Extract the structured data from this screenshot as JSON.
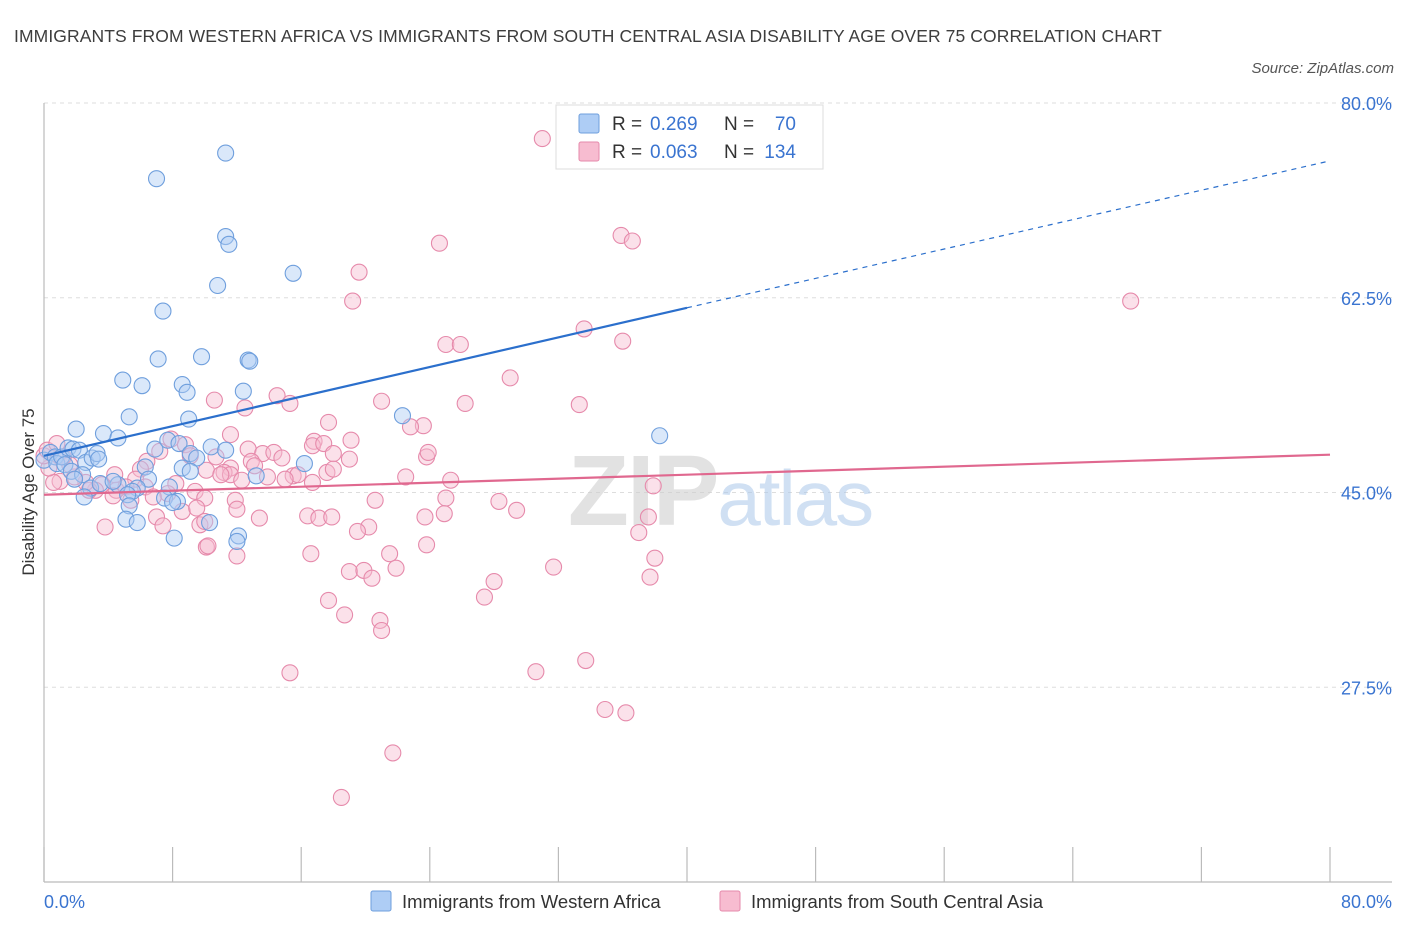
{
  "title": "IMMIGRANTS FROM WESTERN AFRICA VS IMMIGRANTS FROM SOUTH CENTRAL ASIA DISABILITY AGE OVER 75 CORRELATION CHART",
  "source": "Source: ZipAtlas.com",
  "watermark": "ZIPatlas",
  "colors": {
    "blue_fill": "#aecdf5",
    "blue_stroke": "#6f9fdd",
    "blue_line": "#2b6fcc",
    "pink_fill": "#f7bcd0",
    "pink_stroke": "#e68aab",
    "pink_line": "#e0688f",
    "value_text": "#3a74d0",
    "grid": "#dddddd"
  },
  "legend_top": {
    "rows": [
      {
        "r_label": "R =",
        "r_value": "0.269",
        "n_label": "N =",
        "n_value": "70"
      },
      {
        "r_label": "R =",
        "r_value": "0.063",
        "n_label": "N =",
        "n_value": "134"
      }
    ]
  },
  "legend_bottom": [
    "Immigrants from Western Africa",
    "Immigrants from South Central Asia"
  ],
  "chart_data": {
    "type": "scatter",
    "title": "IMMIGRANTS FROM WESTERN AFRICA VS IMMIGRANTS FROM SOUTH CENTRAL ASIA DISABILITY AGE OVER 75 CORRELATION CHART",
    "xlabel": "",
    "ylabel": "Disability Age Over 75",
    "xlim": [
      0,
      80
    ],
    "ylim": [
      10,
      80
    ],
    "x_tick_labels": [
      "0.0%",
      "80.0%"
    ],
    "y_ticks": [
      27.5,
      45.0,
      62.5,
      80.0
    ],
    "y_tick_labels": [
      "27.5%",
      "45.0%",
      "62.5%",
      "80.0%"
    ],
    "grid": true,
    "legend_position": "top-center",
    "series": [
      {
        "name": "Immigrants from Western Africa",
        "R": 0.269,
        "N": 70,
        "trend": {
          "x": [
            0,
            40
          ],
          "y": [
            48.3,
            61.6
          ],
          "dashed_to": [
            80,
            74.8
          ]
        },
        "points": [
          [
            7.0,
            73.2
          ],
          [
            11.3,
            75.5
          ],
          [
            11.3,
            68.0
          ],
          [
            11.5,
            67.3
          ],
          [
            10.8,
            63.6
          ],
          [
            7.4,
            61.3
          ],
          [
            15.5,
            64.7
          ],
          [
            9.8,
            57.2
          ],
          [
            7.1,
            57.0
          ],
          [
            12.7,
            56.9
          ],
          [
            12.8,
            56.8
          ],
          [
            4.9,
            55.1
          ],
          [
            6.1,
            54.6
          ],
          [
            8.6,
            54.7
          ],
          [
            8.9,
            54.0
          ],
          [
            12.4,
            54.1
          ],
          [
            5.3,
            51.8
          ],
          [
            9.0,
            51.6
          ],
          [
            22.3,
            51.9
          ],
          [
            38.3,
            50.1
          ],
          [
            3.7,
            50.3
          ],
          [
            2.0,
            50.7
          ],
          [
            4.6,
            49.9
          ],
          [
            0.0,
            47.9
          ],
          [
            0.4,
            48.6
          ],
          [
            0.7,
            48.2
          ],
          [
            0.8,
            47.6
          ],
          [
            1.1,
            48.2
          ],
          [
            1.5,
            49.0
          ],
          [
            1.8,
            48.9
          ],
          [
            2.2,
            48.8
          ],
          [
            2.6,
            47.7
          ],
          [
            3.0,
            48.1
          ],
          [
            3.3,
            48.5
          ],
          [
            3.4,
            48.0
          ],
          [
            1.3,
            47.5
          ],
          [
            1.7,
            46.9
          ],
          [
            2.4,
            46.6
          ],
          [
            1.9,
            46.2
          ],
          [
            2.9,
            45.4
          ],
          [
            3.5,
            45.8
          ],
          [
            4.6,
            45.7
          ],
          [
            4.3,
            46.0
          ],
          [
            6.3,
            47.3
          ],
          [
            6.5,
            46.2
          ],
          [
            6.9,
            48.9
          ],
          [
            7.7,
            49.7
          ],
          [
            8.4,
            49.4
          ],
          [
            9.1,
            48.5
          ],
          [
            9.5,
            48.1
          ],
          [
            10.4,
            49.1
          ],
          [
            8.6,
            47.2
          ],
          [
            7.8,
            45.5
          ],
          [
            9.1,
            46.9
          ],
          [
            11.3,
            48.8
          ],
          [
            16.2,
            47.6
          ],
          [
            13.2,
            46.5
          ],
          [
            5.8,
            45.4
          ],
          [
            5.5,
            45.1
          ],
          [
            2.5,
            44.6
          ],
          [
            5.2,
            44.8
          ],
          [
            7.5,
            44.5
          ],
          [
            8.3,
            44.2
          ],
          [
            5.3,
            43.8
          ],
          [
            8.0,
            44.1
          ],
          [
            5.1,
            42.6
          ],
          [
            5.8,
            42.3
          ],
          [
            10.3,
            42.3
          ],
          [
            12.1,
            41.1
          ],
          [
            8.1,
            40.9
          ],
          [
            12.0,
            40.6
          ]
        ]
      },
      {
        "name": "Immigrants from South Central Asia",
        "R": 0.063,
        "N": 134,
        "trend": {
          "x": [
            0,
            80
          ],
          "y": [
            44.8,
            48.4
          ]
        },
        "points": [
          [
            31.0,
            76.8
          ],
          [
            35.9,
            68.1
          ],
          [
            24.6,
            67.4
          ],
          [
            36.6,
            67.6
          ],
          [
            19.6,
            64.8
          ],
          [
            19.2,
            62.2
          ],
          [
            67.6,
            62.2
          ],
          [
            33.6,
            59.7
          ],
          [
            36.0,
            58.6
          ],
          [
            25.0,
            58.3
          ],
          [
            25.9,
            58.3
          ],
          [
            29.0,
            55.3
          ],
          [
            10.6,
            53.3
          ],
          [
            14.5,
            53.7
          ],
          [
            15.3,
            53.0
          ],
          [
            12.5,
            52.6
          ],
          [
            21.0,
            53.2
          ],
          [
            26.2,
            53.0
          ],
          [
            33.3,
            52.9
          ],
          [
            17.7,
            51.3
          ],
          [
            11.6,
            50.2
          ],
          [
            16.8,
            49.6
          ],
          [
            19.1,
            49.7
          ],
          [
            23.6,
            51.0
          ],
          [
            22.8,
            50.9
          ],
          [
            7.9,
            49.8
          ],
          [
            8.8,
            49.3
          ],
          [
            9.1,
            48.3
          ],
          [
            10.7,
            48.2
          ],
          [
            12.7,
            48.9
          ],
          [
            13.6,
            48.5
          ],
          [
            14.3,
            48.6
          ],
          [
            14.8,
            48.1
          ],
          [
            16.7,
            49.2
          ],
          [
            17.4,
            49.4
          ],
          [
            18.0,
            48.5
          ],
          [
            19.0,
            48.0
          ],
          [
            23.8,
            48.2
          ],
          [
            23.9,
            48.6
          ],
          [
            11.6,
            47.2
          ],
          [
            12.9,
            47.8
          ],
          [
            13.1,
            47.4
          ],
          [
            11.2,
            46.8
          ],
          [
            10.1,
            47.0
          ],
          [
            11.6,
            46.6
          ],
          [
            6.4,
            47.8
          ],
          [
            6.0,
            47.1
          ],
          [
            5.7,
            46.2
          ],
          [
            6.3,
            45.5
          ],
          [
            4.4,
            46.6
          ],
          [
            4.5,
            45.2
          ],
          [
            5.1,
            45.5
          ],
          [
            3.6,
            45.7
          ],
          [
            3.2,
            45.2
          ],
          [
            2.8,
            45.2
          ],
          [
            2.6,
            45.9
          ],
          [
            1.9,
            46.4
          ],
          [
            1.6,
            47.5
          ],
          [
            1.0,
            46.0
          ],
          [
            0.6,
            45.9
          ],
          [
            0.3,
            47.2
          ],
          [
            0.0,
            48.3
          ],
          [
            0.2,
            48.8
          ],
          [
            1.2,
            48.2
          ],
          [
            0.8,
            49.4
          ],
          [
            8.2,
            45.8
          ],
          [
            9.4,
            45.1
          ],
          [
            10.0,
            44.5
          ],
          [
            7.7,
            44.9
          ],
          [
            6.8,
            44.6
          ],
          [
            5.4,
            44.3
          ],
          [
            4.3,
            44.7
          ],
          [
            8.6,
            43.3
          ],
          [
            9.5,
            43.6
          ],
          [
            11.9,
            44.3
          ],
          [
            11.0,
            46.6
          ],
          [
            12.3,
            46.1
          ],
          [
            13.9,
            46.4
          ],
          [
            15.5,
            46.5
          ],
          [
            15.8,
            46.6
          ],
          [
            17.6,
            46.8
          ],
          [
            18.0,
            47.1
          ],
          [
            16.7,
            45.9
          ],
          [
            22.5,
            46.4
          ],
          [
            25.3,
            46.1
          ],
          [
            20.6,
            44.3
          ],
          [
            25.0,
            44.5
          ],
          [
            28.3,
            44.2
          ],
          [
            29.4,
            43.4
          ],
          [
            37.9,
            45.6
          ],
          [
            7.0,
            42.8
          ],
          [
            7.4,
            42.0
          ],
          [
            9.7,
            42.1
          ],
          [
            10.0,
            42.4
          ],
          [
            13.4,
            42.7
          ],
          [
            12.0,
            43.5
          ],
          [
            16.4,
            42.9
          ],
          [
            17.1,
            42.7
          ],
          [
            17.9,
            42.8
          ],
          [
            20.2,
            41.9
          ],
          [
            19.5,
            41.5
          ],
          [
            24.9,
            43.1
          ],
          [
            37.6,
            42.8
          ],
          [
            37.0,
            41.4
          ],
          [
            3.8,
            41.9
          ],
          [
            10.1,
            40.1
          ],
          [
            12.0,
            39.3
          ],
          [
            16.6,
            39.5
          ],
          [
            21.5,
            39.5
          ],
          [
            23.8,
            40.3
          ],
          [
            19.0,
            37.9
          ],
          [
            19.9,
            38.0
          ],
          [
            20.4,
            37.3
          ],
          [
            21.9,
            38.2
          ],
          [
            28.0,
            37.0
          ],
          [
            38.0,
            39.1
          ],
          [
            37.7,
            37.4
          ],
          [
            31.7,
            38.3
          ],
          [
            27.4,
            35.6
          ],
          [
            17.7,
            35.3
          ],
          [
            18.7,
            34.0
          ],
          [
            20.9,
            33.5
          ],
          [
            21.0,
            32.6
          ],
          [
            33.7,
            29.9
          ],
          [
            15.3,
            28.8
          ],
          [
            30.6,
            28.9
          ],
          [
            36.2,
            25.2
          ],
          [
            34.9,
            25.5
          ],
          [
            21.7,
            21.6
          ],
          [
            18.5,
            17.6
          ],
          [
            15.0,
            46.2
          ],
          [
            10.2,
            40.2
          ],
          [
            7.2,
            48.7
          ],
          [
            23.7,
            42.8
          ]
        ]
      }
    ]
  }
}
